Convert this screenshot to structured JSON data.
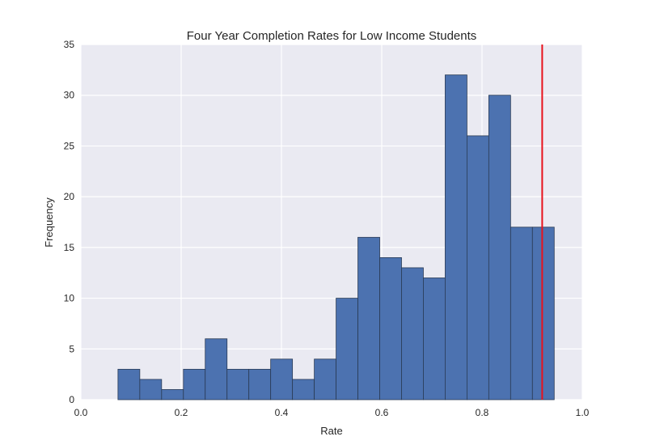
{
  "chart_data": {
    "type": "bar",
    "title": "Four Year Completion Rates for Low Income Students",
    "xlabel": "Rate",
    "ylabel": "Frequency",
    "xlim": [
      0.0,
      1.0
    ],
    "ylim": [
      0,
      35
    ],
    "grid": true,
    "xticks": [
      "0.0",
      "0.2",
      "0.4",
      "0.6",
      "0.8",
      "1.0"
    ],
    "yticks": [
      "0",
      "5",
      "10",
      "15",
      "20",
      "25",
      "30",
      "35"
    ],
    "bin_edges": [
      0.074,
      0.1175,
      0.161,
      0.2045,
      0.248,
      0.2915,
      0.335,
      0.3785,
      0.422,
      0.4655,
      0.509,
      0.5525,
      0.596,
      0.6395,
      0.683,
      0.7265,
      0.77,
      0.8135,
      0.857,
      0.9005,
      0.944
    ],
    "values": [
      3,
      2,
      1,
      3,
      6,
      3,
      3,
      4,
      2,
      4,
      10,
      16,
      14,
      13,
      12,
      32,
      26,
      30,
      17,
      17
    ],
    "reference_line": {
      "x": 0.92,
      "color": "#e8121c"
    },
    "bar_color": "#4c72b0",
    "background_color": "#eaeaf2"
  }
}
